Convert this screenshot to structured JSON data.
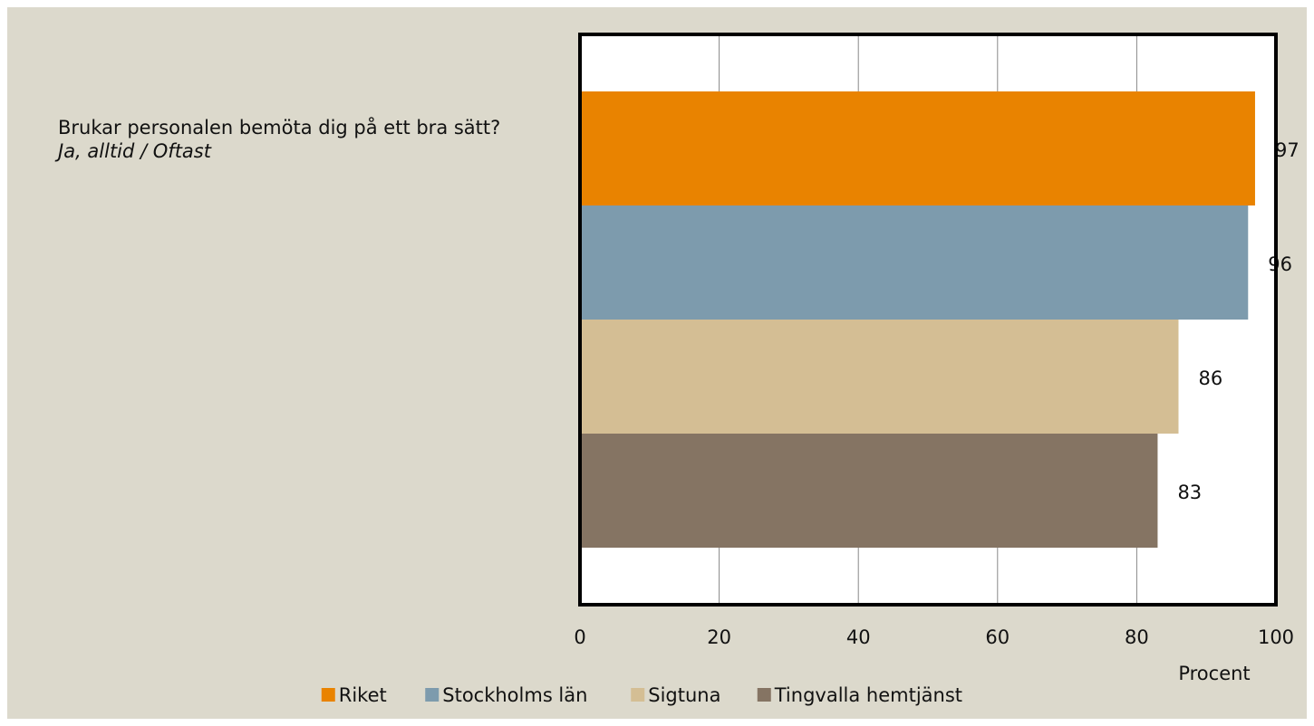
{
  "chart_data": {
    "type": "bar",
    "orientation": "horizontal",
    "title": "Brukar personalen bemöta dig på ett bra sätt?",
    "subtitle": "Ja, alltid / Oftast",
    "x_label": "Procent",
    "categories": [
      null
    ],
    "series": [
      {
        "name": "Riket",
        "color": "#e98300",
        "values": [
          97
        ]
      },
      {
        "name": "Stockholms län",
        "color": "#7d9bad",
        "values": [
          96
        ]
      },
      {
        "name": "Sigtuna",
        "color": "#d4be94",
        "values": [
          86
        ]
      },
      {
        "name": "Tingvalla hemtjänst",
        "color": "#857463",
        "values": [
          83
        ]
      }
    ],
    "xlim": [
      0,
      100
    ],
    "xticks": [
      0,
      20,
      40,
      60,
      80,
      100
    ],
    "grid": true,
    "legend": "bottom"
  }
}
